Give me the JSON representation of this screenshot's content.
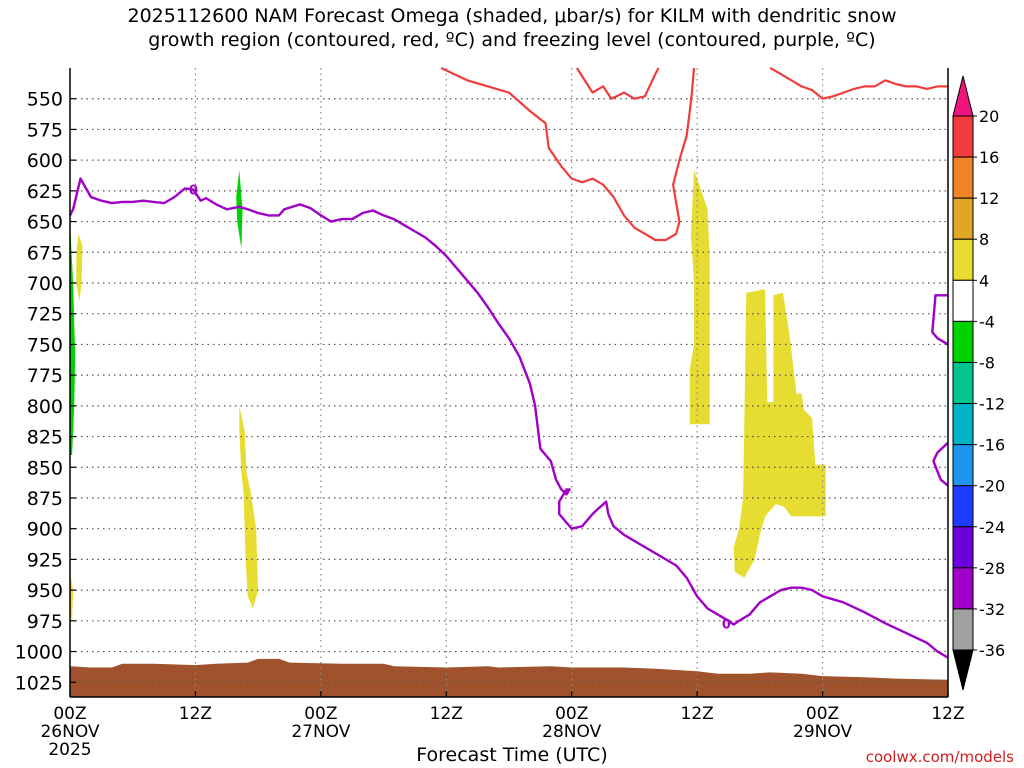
{
  "chart_data": {
    "type": "contour",
    "title_lines": [
      "2025112600 NAM Forecast Omega (shaded, μbar/s) for KILM with dendritic snow",
      "growth region (contoured, red, ºC) and freezing level (contoured, purple, ºC)"
    ],
    "xlabel": "Forecast Time (UTC)",
    "credit": "coolwx.com/models",
    "x_range_hours": [
      0,
      84
    ],
    "y_range_mb": [
      525,
      1037
    ],
    "y_ticks": [
      550,
      575,
      600,
      625,
      650,
      675,
      700,
      725,
      750,
      775,
      800,
      825,
      850,
      875,
      900,
      925,
      950,
      975,
      1000,
      1025
    ],
    "x_ticks": [
      {
        "hour": 0,
        "label": "00Z",
        "sub": "26NOV",
        "sub2": "2025"
      },
      {
        "hour": 12,
        "label": "12Z"
      },
      {
        "hour": 24,
        "label": "00Z",
        "sub": "27NOV"
      },
      {
        "hour": 36,
        "label": "12Z"
      },
      {
        "hour": 48,
        "label": "00Z",
        "sub": "28NOV"
      },
      {
        "hour": 60,
        "label": "12Z"
      },
      {
        "hour": 72,
        "label": "00Z",
        "sub": "29NOV"
      },
      {
        "hour": 84,
        "label": "12Z"
      }
    ],
    "colorbar": {
      "labels": [
        "20",
        "16",
        "12",
        "8",
        "4",
        "-4",
        "-8",
        "-12",
        "-16",
        "-20",
        "-24",
        "-28",
        "-32",
        "-36"
      ],
      "colors": [
        "#f03c3c",
        "#f08228",
        "#e1a528",
        "#e6dc32",
        "#ffffff",
        "#00d200",
        "#00c58c",
        "#00b4c8",
        "#1e96f0",
        "#1e3cff",
        "#6e00dc",
        "#a000c8",
        "#a0a0a0"
      ],
      "top_color": "#f0147d",
      "bottom_color": "#000000"
    },
    "freezing_level_color": "#a000c8",
    "freezing_level_label": "0",
    "freezing_level": [
      [
        0,
        645
      ],
      [
        0.3,
        640
      ],
      [
        1,
        615
      ],
      [
        2,
        630
      ],
      [
        3,
        633
      ],
      [
        4,
        635
      ],
      [
        5,
        634
      ],
      [
        6,
        634
      ],
      [
        7,
        633
      ],
      [
        8,
        634
      ],
      [
        9,
        635
      ],
      [
        10,
        630
      ],
      [
        11,
        623
      ],
      [
        11.8,
        624
      ],
      [
        12.5,
        633
      ],
      [
        13,
        631
      ],
      [
        14,
        636
      ],
      [
        15,
        640
      ],
      [
        16.2,
        638
      ],
      [
        17,
        640
      ],
      [
        18,
        643
      ],
      [
        19,
        645
      ],
      [
        20,
        645
      ],
      [
        20.5,
        640
      ],
      [
        22,
        636
      ],
      [
        23,
        639
      ],
      [
        24,
        645
      ],
      [
        25,
        650
      ],
      [
        26,
        648
      ],
      [
        27,
        648
      ],
      [
        28,
        643
      ],
      [
        29,
        641
      ],
      [
        30,
        645
      ],
      [
        31,
        648
      ],
      [
        32,
        653
      ],
      [
        33,
        658
      ],
      [
        34,
        663
      ],
      [
        35,
        670
      ],
      [
        36,
        678
      ],
      [
        37,
        688
      ],
      [
        38,
        698
      ],
      [
        39,
        708
      ],
      [
        40,
        720
      ],
      [
        41,
        733
      ],
      [
        42,
        745
      ],
      [
        43,
        760
      ],
      [
        44,
        782
      ],
      [
        44.5,
        800
      ],
      [
        45,
        835
      ],
      [
        46,
        845
      ],
      [
        46.5,
        860
      ],
      [
        47,
        868
      ],
      [
        47.5,
        872
      ],
      [
        47.8,
        868
      ],
      [
        47.5,
        868
      ],
      [
        46.8,
        878
      ],
      [
        46.8,
        888
      ],
      [
        47.5,
        895
      ],
      [
        48,
        900
      ],
      [
        49,
        898
      ],
      [
        50,
        888
      ],
      [
        50.5,
        884
      ],
      [
        51.3,
        878
      ],
      [
        51.5,
        888
      ],
      [
        52,
        898
      ],
      [
        53,
        905
      ],
      [
        55,
        915
      ],
      [
        57,
        925
      ],
      [
        58,
        930
      ],
      [
        59,
        940
      ],
      [
        60,
        955
      ],
      [
        61,
        965
      ],
      [
        62,
        970
      ],
      [
        63,
        975
      ],
      [
        63.5,
        978
      ],
      [
        64,
        975
      ],
      [
        65,
        970
      ],
      [
        66,
        960
      ],
      [
        67,
        955
      ],
      [
        68,
        950
      ],
      [
        69,
        948
      ],
      [
        70,
        948
      ],
      [
        71,
        950
      ],
      [
        72,
        955
      ],
      [
        74,
        960
      ],
      [
        76,
        968
      ],
      [
        78,
        977
      ],
      [
        80,
        985
      ],
      [
        82,
        993
      ],
      [
        83,
        1000
      ],
      [
        84,
        1005
      ]
    ],
    "dgz_color": "#f03c3c",
    "dgz_segments": [
      [
        [
          35.5,
          525
        ],
        [
          38,
          535
        ],
        [
          40,
          540
        ],
        [
          42,
          545
        ],
        [
          44,
          560
        ],
        [
          45.5,
          570
        ],
        [
          45.8,
          590
        ],
        [
          47,
          605
        ],
        [
          48,
          615
        ],
        [
          49,
          618
        ],
        [
          50,
          615
        ],
        [
          51,
          620
        ],
        [
          52,
          630
        ],
        [
          53,
          645
        ],
        [
          54,
          655
        ],
        [
          55,
          660
        ],
        [
          56,
          665
        ],
        [
          57,
          665
        ],
        [
          58,
          660
        ],
        [
          58.3,
          650
        ],
        [
          58,
          635
        ],
        [
          57.7,
          620
        ],
        [
          58.3,
          600
        ],
        [
          59,
          580
        ],
        [
          59.3,
          560
        ],
        [
          59.5,
          545
        ],
        [
          59.7,
          525
        ]
      ],
      [
        [
          48.5,
          525
        ],
        [
          50,
          545
        ],
        [
          51,
          540
        ],
        [
          51.8,
          550
        ],
        [
          53,
          545
        ],
        [
          54,
          550
        ],
        [
          55,
          548
        ],
        [
          56,
          530
        ],
        [
          56.3,
          525
        ]
      ],
      [
        [
          67,
          525
        ],
        [
          68,
          530
        ],
        [
          70,
          540
        ],
        [
          71,
          543
        ],
        [
          72,
          550
        ],
        [
          73,
          548
        ],
        [
          74,
          545
        ],
        [
          75,
          542
        ],
        [
          76,
          540
        ],
        [
          77,
          540
        ],
        [
          78,
          535
        ],
        [
          79,
          538
        ],
        [
          80,
          540
        ],
        [
          81,
          540
        ],
        [
          82,
          542
        ],
        [
          83,
          540
        ],
        [
          84,
          540
        ]
      ]
    ],
    "omega_shaded": [
      {
        "value": "-4 to -8",
        "color": "#00d200",
        "polygon": [
          [
            0,
            650
          ],
          [
            0.3,
            700
          ],
          [
            0.5,
            760
          ],
          [
            0.4,
            800
          ],
          [
            0.2,
            840
          ],
          [
            0,
            840
          ]
        ]
      },
      {
        "value": "-4 to -8",
        "color": "#00d200",
        "polygon": [
          [
            16.2,
            608
          ],
          [
            16.5,
            640
          ],
          [
            16.4,
            672
          ],
          [
            16.0,
            650
          ],
          [
            15.9,
            630
          ]
        ]
      },
      {
        "value": "4 to 8",
        "color": "#e6dc32",
        "polygon": [
          [
            0.8,
            660
          ],
          [
            1.2,
            670
          ],
          [
            1.1,
            700
          ],
          [
            0.9,
            715
          ],
          [
            0.6,
            700
          ],
          [
            0.6,
            675
          ]
        ]
      },
      {
        "value": "4 to 8",
        "color": "#e6dc32",
        "polygon": [
          [
            0,
            935
          ],
          [
            0.3,
            950
          ],
          [
            0.2,
            975
          ],
          [
            0,
            970
          ]
        ]
      },
      {
        "value": "4 to 8",
        "color": "#e6dc32",
        "polygon": [
          [
            16.2,
            800
          ],
          [
            16.7,
            820
          ],
          [
            16.9,
            855
          ],
          [
            17.3,
            870
          ],
          [
            17.8,
            900
          ],
          [
            18.0,
            950
          ],
          [
            17.5,
            965
          ],
          [
            17.0,
            955
          ],
          [
            16.8,
            925
          ],
          [
            16.6,
            870
          ],
          [
            16.4,
            855
          ],
          [
            16.2,
            820
          ]
        ]
      },
      {
        "value": "4 to 8",
        "color": "#e6dc32",
        "polygon": [
          [
            59.7,
            608
          ],
          [
            61.0,
            640
          ],
          [
            61.2,
            680
          ],
          [
            61.2,
            815
          ],
          [
            59.3,
            815
          ],
          [
            59.3,
            770
          ],
          [
            59.7,
            750
          ],
          [
            59.7,
            700
          ],
          [
            59.4,
            660
          ]
        ]
      },
      {
        "value": "4 to 8",
        "color": "#e6dc32",
        "polygon": [
          [
            64.7,
            708
          ],
          [
            66.5,
            705
          ],
          [
            66.7,
            797
          ],
          [
            67.3,
            797
          ],
          [
            67.3,
            710
          ],
          [
            68.2,
            708
          ],
          [
            68.8,
            740
          ],
          [
            69.3,
            775
          ],
          [
            69.5,
            790
          ],
          [
            70.0,
            790
          ],
          [
            70.2,
            803
          ],
          [
            71.0,
            810
          ],
          [
            71.3,
            848
          ],
          [
            72.3,
            848
          ],
          [
            72.3,
            890
          ],
          [
            69.0,
            890
          ],
          [
            68.3,
            882
          ],
          [
            67.5,
            880
          ],
          [
            66.5,
            890
          ],
          [
            66.0,
            905
          ],
          [
            65.5,
            925
          ],
          [
            64.5,
            940
          ],
          [
            63.6,
            935
          ],
          [
            63.5,
            915
          ],
          [
            64.0,
            900
          ],
          [
            64.4,
            875
          ],
          [
            64.5,
            820
          ]
        ]
      }
    ],
    "surface_color": "#a0522d",
    "surface_top": [
      [
        0,
        1012
      ],
      [
        2,
        1013
      ],
      [
        4,
        1013
      ],
      [
        5,
        1010
      ],
      [
        8,
        1010
      ],
      [
        12,
        1011
      ],
      [
        14,
        1010
      ],
      [
        17,
        1009
      ],
      [
        18,
        1006
      ],
      [
        20,
        1006
      ],
      [
        21,
        1009
      ],
      [
        26,
        1010
      ],
      [
        30,
        1010
      ],
      [
        31,
        1012
      ],
      [
        36,
        1013
      ],
      [
        40,
        1012
      ],
      [
        41,
        1013
      ],
      [
        46,
        1012
      ],
      [
        48,
        1013
      ],
      [
        53,
        1013
      ],
      [
        56,
        1014
      ],
      [
        60,
        1016
      ],
      [
        62,
        1018
      ],
      [
        65,
        1018
      ],
      [
        67,
        1017
      ],
      [
        70,
        1018
      ],
      [
        72,
        1020
      ],
      [
        76,
        1021
      ],
      [
        79,
        1022
      ],
      [
        84,
        1023
      ]
    ]
  }
}
